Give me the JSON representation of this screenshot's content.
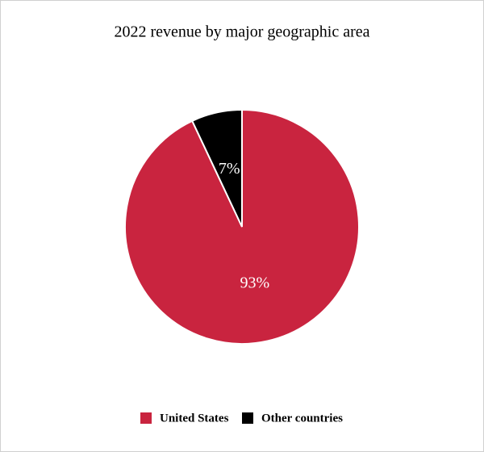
{
  "chart_data": {
    "type": "pie",
    "title": "2022 revenue by major geographic area",
    "categories": [
      "United States",
      "Other countries"
    ],
    "values": [
      93,
      7
    ],
    "value_labels": [
      "93%",
      "7%"
    ],
    "colors": [
      "#c9243f",
      "#000000"
    ]
  }
}
